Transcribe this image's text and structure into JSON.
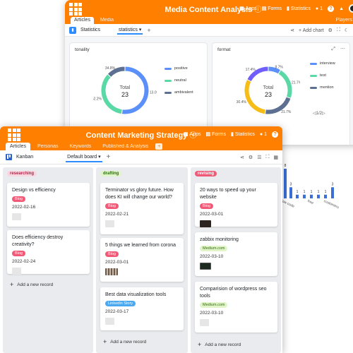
{
  "back_window": {
    "title": "Media Content Analysis",
    "bar_items": [
      {
        "icon": "apps-icon",
        "label": "Apps"
      },
      {
        "icon": "forms-icon",
        "label": "Forms"
      },
      {
        "icon": "statistics-icon",
        "label": "Statistics"
      },
      {
        "icon": "users-icon",
        "label": "1"
      }
    ],
    "tabs": [
      "Articles",
      "Media",
      "Players"
    ],
    "toolbar": {
      "stats_label": "Statistics",
      "view_selector": "statistics",
      "add_chart": "+ Add chart"
    },
    "charts": [
      {
        "title": "tonality",
        "center_label": "Total",
        "center_value": "23",
        "slices": [
          {
            "label": "positive",
            "value": 52.2,
            "color": "#5b8ff9"
          },
          {
            "label": "neutral",
            "value": 34.8,
            "color": "#5ad8a6"
          },
          {
            "label": "ambivalent",
            "value": 13.0,
            "color": "#5d7092"
          }
        ],
        "slice_labels": [
          "13.0%",
          "52.2%",
          "34.8%"
        ]
      },
      {
        "title": "format",
        "center_label": "Total",
        "center_value": "23",
        "slices": [
          {
            "label": "interview",
            "value": 8.7,
            "color": "#5b8ff9"
          },
          {
            "label": "test",
            "value": 21.7,
            "color": "#5ad8a6"
          },
          {
            "label": "mention",
            "value": 21.7,
            "color": "#5d7092"
          },
          {
            "label": "",
            "value": 30.4,
            "color": "#f6bd16"
          },
          {
            "label": "",
            "value": 17.4,
            "color": "#6f5ef9"
          }
        ],
        "slice_labels": [
          "8.7%",
          "21.7%",
          "21.7%",
          "30.4%",
          "17.4%"
        ],
        "pager": "1/2"
      }
    ]
  },
  "peek_chart": {
    "chart_data": {
      "type": "bar",
      "values": [
        8,
        3,
        1,
        1,
        1,
        1,
        1,
        3
      ],
      "x_labels": [
        "low code",
        "free",
        "customers"
      ],
      "color": "#3a6fd8"
    }
  },
  "front_window": {
    "title": "Content Marketing Strategy",
    "bar_items": [
      {
        "icon": "apps-icon",
        "label": "Apps"
      },
      {
        "icon": "forms-icon",
        "label": "Forms"
      },
      {
        "icon": "statistics-icon",
        "label": "Statistics"
      },
      {
        "icon": "users-icon",
        "label": "1"
      }
    ],
    "tabs": [
      "Articles",
      "Personas",
      "Keywords",
      "Published & Analysis",
      "+"
    ],
    "toolbar": {
      "view_label": "Kanban",
      "board_selector": "Default board",
      "add_view": "+"
    },
    "columns": [
      {
        "name": "researching",
        "head_bg": "#f8d7e0",
        "head_color": "#b0244a",
        "cards": [
          {
            "title": "Design vs efficiency",
            "tag": "Blog",
            "tag_type": "blog",
            "date": "2022-02-16",
            "thumb": "blank"
          },
          {
            "title": "Does efficiency destroy creativity?",
            "tag": "Blog",
            "tag_type": "blog",
            "date": "2022-02-24",
            "thumb": "blank"
          }
        ],
        "add_label": "Add a new record"
      },
      {
        "name": "drafting",
        "head_bg": "#dff5c7",
        "head_color": "#2f6a12",
        "cards": [
          {
            "title": "Terminator vs glory future. How does KI will change our world?",
            "tag": "Blog",
            "tag_type": "blog",
            "date": "2022-02-21",
            "thumb": "blank"
          },
          {
            "title": "5 things we learned from corona",
            "tag": "Blog",
            "tag_type": "blog",
            "date": "2022-03-01",
            "thumb": "photo"
          },
          {
            "title": "Best data visualization tools",
            "tag": "LinkedIn Story",
            "tag_type": "linkedin",
            "date": "2022-03-17",
            "thumb": "blank"
          }
        ],
        "add_label": "Add a new record"
      },
      {
        "name": "revising",
        "head_bg": "#f05a77",
        "head_color": "#ffffff",
        "cards": [
          {
            "title": "20 ways to speed up your website",
            "tag": "Blog",
            "tag_type": "blog",
            "date": "2022-03-01",
            "thumb": "dark"
          },
          {
            "title": "zabbix monitoring",
            "tag": "Medium.com",
            "tag_type": "medium",
            "date": "2022-03-10",
            "thumb": "screen"
          },
          {
            "title": "Comparision of wordpress seo tools",
            "tag": "Medium.com",
            "tag_type": "medium",
            "date": "2022-03-10",
            "thumb": "blank"
          }
        ],
        "add_label": "Add a new record"
      }
    ]
  }
}
